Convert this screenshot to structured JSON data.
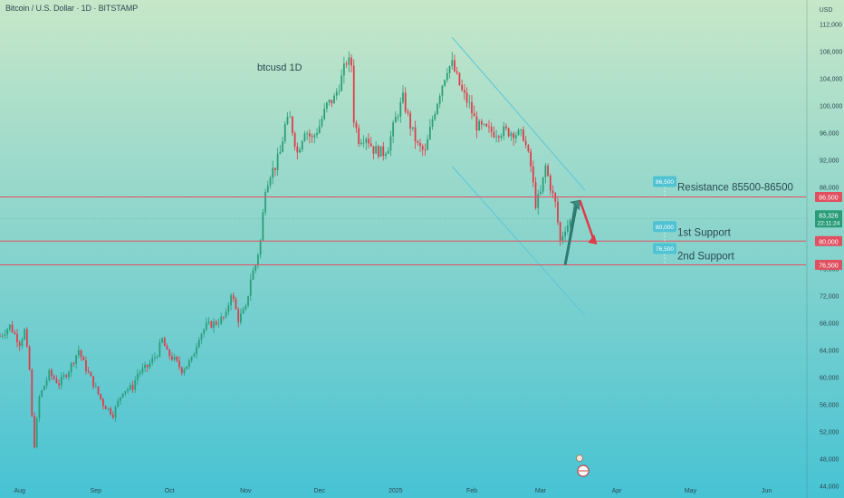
{
  "header": {
    "title": "Bitcoin / U.S. Dollar · 1D · BITSTAMP"
  },
  "chart_data": {
    "type": "candlestick",
    "symbol_label": "btcusd   1D",
    "currency_label": "USD",
    "y_ticks": [
      44000,
      48000,
      52000,
      56000,
      60000,
      64000,
      68000,
      72000,
      76000,
      80000,
      84000,
      88000,
      92000,
      96000,
      100000,
      104000,
      108000,
      112000
    ],
    "y_tick_labels": [
      "44,000",
      "48,000",
      "52,000",
      "56,000",
      "60,000",
      "64,000",
      "68,000",
      "72,000",
      "76,000",
      "80,000",
      "84,000",
      "88,000",
      "92,000",
      "96,000",
      "100,000",
      "104,000",
      "108,000",
      "112,000"
    ],
    "ylim": [
      43500,
      115500
    ],
    "x_ticks": [
      "Aug",
      "Sep",
      "Oct",
      "Nov",
      "Dec",
      "2025",
      "Feb",
      "Mar",
      "Apr",
      "May",
      "Jun"
    ],
    "x_tick_days": [
      0,
      31,
      61,
      92,
      122,
      153,
      184,
      212,
      243,
      273,
      304
    ],
    "x_tick_dates": [
      "2024-08-01",
      "2024-09-01",
      "2024-10-01",
      "2024-11-01",
      "2024-12-01",
      "2025-01-01",
      "2025-02-01",
      "2025-03-01",
      "2025-04-01",
      "2025-05-01",
      "2025-06-01"
    ],
    "xlim_days": [
      -8,
      320
    ],
    "price_points": [
      [
        -8,
        66000
      ],
      [
        -4,
        67500
      ],
      [
        0,
        65000
      ],
      [
        2,
        66800
      ],
      [
        4,
        61000
      ],
      [
        5,
        54000
      ],
      [
        6,
        50000
      ],
      [
        8,
        57000
      ],
      [
        12,
        60500
      ],
      [
        16,
        59000
      ],
      [
        20,
        61000
      ],
      [
        24,
        64000
      ],
      [
        26,
        62000
      ],
      [
        30,
        59000
      ],
      [
        34,
        56000
      ],
      [
        38,
        54500
      ],
      [
        42,
        58000
      ],
      [
        46,
        58500
      ],
      [
        48,
        60500
      ],
      [
        52,
        61500
      ],
      [
        56,
        63500
      ],
      [
        58,
        65500
      ],
      [
        60,
        63500
      ],
      [
        63,
        62500
      ],
      [
        66,
        61000
      ],
      [
        70,
        62500
      ],
      [
        73,
        66000
      ],
      [
        76,
        67500
      ],
      [
        80,
        68000
      ],
      [
        84,
        69000
      ],
      [
        86,
        72500
      ],
      [
        89,
        68500
      ],
      [
        92,
        70000
      ],
      [
        94,
        74500
      ],
      [
        96,
        76500
      ],
      [
        98,
        80000
      ],
      [
        100,
        88000
      ],
      [
        102,
        90000
      ],
      [
        104,
        91000
      ],
      [
        106,
        93000
      ],
      [
        108,
        97000
      ],
      [
        110,
        98000
      ],
      [
        113,
        93000
      ],
      [
        116,
        96500
      ],
      [
        119,
        95000
      ],
      [
        122,
        97000
      ],
      [
        125,
        100000
      ],
      [
        128,
        101000
      ],
      [
        131,
        104000
      ],
      [
        133,
        106500
      ],
      [
        135,
        106000
      ],
      [
        136,
        98000
      ],
      [
        138,
        95000
      ],
      [
        141,
        95500
      ],
      [
        144,
        93500
      ],
      [
        148,
        93000
      ],
      [
        150,
        94000
      ],
      [
        153,
        98000
      ],
      [
        156,
        101000
      ],
      [
        159,
        97000
      ],
      [
        162,
        94000
      ],
      [
        165,
        93000
      ],
      [
        168,
        98000
      ],
      [
        171,
        102000
      ],
      [
        174,
        105500
      ],
      [
        176,
        106000
      ],
      [
        178,
        104000
      ],
      [
        180,
        102000
      ],
      [
        183,
        100000
      ],
      [
        186,
        97000
      ],
      [
        189,
        96500
      ],
      [
        193,
        96000
      ],
      [
        197,
        96200
      ],
      [
        201,
        96000
      ],
      [
        205,
        95500
      ],
      [
        208,
        91000
      ],
      [
        210,
        85500
      ],
      [
        212,
        87000
      ],
      [
        214,
        91000
      ],
      [
        216,
        88000
      ],
      [
        218,
        85500
      ],
      [
        220,
        80000
      ],
      [
        222,
        82000
      ],
      [
        225,
        83326
      ]
    ],
    "lines": [
      {
        "name": "Resistance 85500-86500",
        "value": 86500,
        "badge": "86,500",
        "left_badge": "86,500"
      },
      {
        "name": "1st Support",
        "value": 80000,
        "badge": "80,000",
        "left_badge": "80,000"
      },
      {
        "name": "2nd Support",
        "value": 76500,
        "badge": "76,500",
        "left_badge": "76,500"
      }
    ],
    "current_price": {
      "value": 83326,
      "label": "83,326",
      "timer": "22:11:24"
    },
    "channel": {
      "upper": {
        "from": [
          176,
          110000
        ],
        "to": [
          230,
          87500
        ]
      },
      "lower": {
        "from": [
          176,
          91000
        ],
        "to": [
          230,
          69000
        ]
      }
    },
    "projection": {
      "green": [
        [
          222,
          76500
        ],
        [
          228,
          86000
        ]
      ],
      "red": [
        [
          228,
          86000
        ],
        [
          235,
          79500
        ]
      ]
    },
    "colors": {
      "bg_top": "#c4e6c8",
      "bg_bottom": "#4cc5d4",
      "up": "#2a9d78",
      "down": "#e03a48",
      "line": "#e45060",
      "badge_red": "#e05060",
      "badge_blue": "#4fc3d3",
      "channel": "#5cc6dc",
      "text_dark": "#2c4a52"
    }
  }
}
